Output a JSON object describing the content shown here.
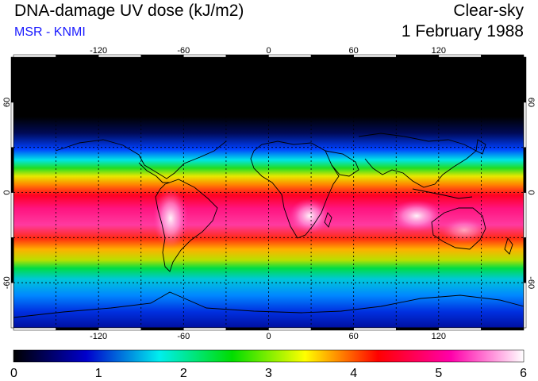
{
  "header": {
    "title": "DNA-damage UV dose (kJ/m2)",
    "subtitle": "MSR - KNMI",
    "mode": "Clear-sky",
    "date": "1 February 1988"
  },
  "map": {
    "lon_range": [
      -180,
      180
    ],
    "lat_range": [
      -90,
      90
    ],
    "lon_ticks": [
      "-120",
      "-60",
      "0",
      "60",
      "120"
    ],
    "lat_ticks": [
      "60",
      "0",
      "-60"
    ],
    "grid_spacing_deg": 30,
    "grid": true,
    "colors": {
      "background": "#000000",
      "coastline": "#000000",
      "grid": "#000000"
    }
  },
  "colorbar": {
    "min": 0,
    "max": 6,
    "labels": [
      "0",
      "1",
      "2",
      "3",
      "4",
      "5",
      "6"
    ],
    "stops": [
      "#000000",
      "#0000cc",
      "#00eeee",
      "#00dd00",
      "#ffff00",
      "#ff0000",
      "#ff00aa",
      "#ffffff"
    ]
  }
}
